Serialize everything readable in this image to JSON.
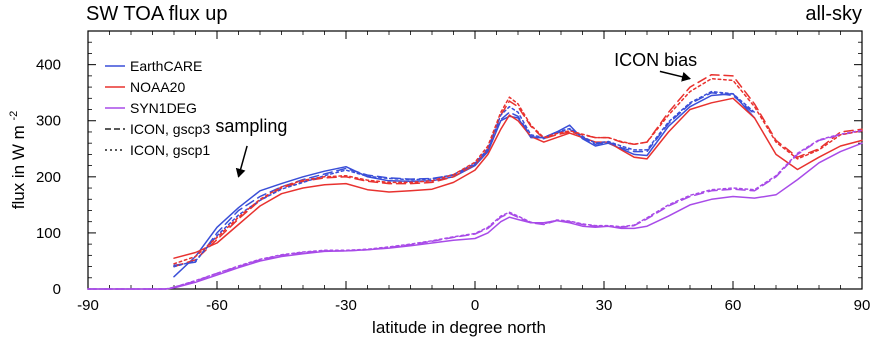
{
  "chart_data": {
    "type": "line",
    "title": "SW TOA flux up",
    "subtitle": "all-sky",
    "xlabel": "latitude in degree north",
    "ylabel_main": "flux in W m",
    "ylabel_sup": "-2",
    "xlim": [
      -90,
      90
    ],
    "ylim": [
      0,
      460
    ],
    "xticks": [
      -90,
      -60,
      -30,
      0,
      30,
      60,
      90
    ],
    "yticks": [
      0,
      100,
      200,
      300,
      400
    ],
    "xticks_minor": [
      -85,
      -80,
      -75,
      -70,
      -65,
      -55,
      -50,
      -45,
      -40,
      -35,
      -25,
      -20,
      -15,
      -10,
      -5,
      5,
      10,
      15,
      20,
      25,
      35,
      40,
      45,
      50,
      55,
      65,
      70,
      75,
      80,
      85
    ],
    "yticks_minor": [
      20,
      40,
      60,
      80,
      120,
      140,
      160,
      180,
      220,
      240,
      260,
      280,
      320,
      340,
      360,
      380,
      420,
      440
    ],
    "grid": false,
    "legend_position": "top-left",
    "legend": [
      {
        "label": "EarthCARE",
        "color": "#3a4fd8",
        "dash": "solid"
      },
      {
        "label": "NOAA20",
        "color": "#e8322f",
        "dash": "solid"
      },
      {
        "label": "SYN1DEG",
        "color": "#a84be8",
        "dash": "solid"
      },
      {
        "label": "ICON, gscp3",
        "color": "#222222",
        "dash": "dashed"
      },
      {
        "label": "ICON, gscp1",
        "color": "#222222",
        "dash": "dotted"
      }
    ],
    "annotations": [
      {
        "text": "sampling",
        "x": -52,
        "y": 280,
        "arrow_from": [
          -53,
          255
        ],
        "arrow_to": [
          -55,
          200
        ]
      },
      {
        "text": "ICON bias",
        "x": 42,
        "y": 398,
        "arrow_from": [
          43,
          388
        ],
        "arrow_to": [
          50,
          375
        ]
      }
    ],
    "series": [
      {
        "name": "EarthCARE",
        "color": "#3a4fd8",
        "dash": "solid",
        "x": [
          -70,
          -65,
          -60,
          -55,
          -50,
          -45,
          -40,
          -35,
          -30,
          -25,
          -20,
          -15,
          -10,
          -5,
          0,
          3,
          6,
          8,
          10,
          13,
          16,
          19,
          22,
          25,
          28,
          31,
          34,
          37,
          40,
          45,
          50,
          55,
          60,
          65
        ],
        "y": [
          22,
          58,
          110,
          145,
          175,
          188,
          200,
          210,
          218,
          200,
          193,
          192,
          193,
          200,
          220,
          245,
          300,
          308,
          305,
          270,
          270,
          280,
          292,
          268,
          255,
          260,
          250,
          240,
          238,
          290,
          325,
          345,
          348,
          305
        ]
      },
      {
        "name": "NOAA20",
        "color": "#e8322f",
        "dash": "solid",
        "x": [
          -70,
          -65,
          -60,
          -55,
          -50,
          -45,
          -40,
          -35,
          -30,
          -25,
          -20,
          -15,
          -10,
          -5,
          0,
          3,
          6,
          8,
          10,
          13,
          16,
          19,
          22,
          25,
          28,
          31,
          34,
          37,
          40,
          45,
          50,
          55,
          60,
          65,
          70,
          75,
          80,
          85,
          90
        ],
        "y": [
          55,
          65,
          82,
          115,
          148,
          170,
          180,
          186,
          188,
          177,
          173,
          175,
          178,
          190,
          212,
          240,
          285,
          310,
          300,
          272,
          262,
          270,
          278,
          270,
          262,
          262,
          248,
          235,
          232,
          280,
          320,
          332,
          340,
          305,
          240,
          213,
          235,
          255,
          265
        ]
      },
      {
        "name": "SYN1DEG",
        "color": "#a84be8",
        "dash": "solid",
        "x": [
          -90,
          -80,
          -72,
          -70,
          -65,
          -60,
          -55,
          -50,
          -45,
          -40,
          -35,
          -30,
          -25,
          -20,
          -15,
          -10,
          -5,
          0,
          3,
          6,
          8,
          10,
          13,
          16,
          19,
          22,
          25,
          28,
          31,
          34,
          37,
          40,
          45,
          50,
          55,
          60,
          65,
          70,
          75,
          80,
          85,
          90
        ],
        "y": [
          0,
          0,
          0,
          2,
          12,
          25,
          38,
          50,
          58,
          63,
          67,
          68,
          70,
          73,
          77,
          82,
          87,
          90,
          100,
          120,
          128,
          124,
          118,
          118,
          122,
          118,
          112,
          110,
          112,
          108,
          108,
          112,
          130,
          150,
          160,
          165,
          162,
          168,
          195,
          225,
          245,
          260
        ]
      },
      {
        "name": "ICON, gscp3",
        "color": "#3a4fd8",
        "dash": "dashed",
        "x": [
          -70,
          -65,
          -60,
          -55,
          -50,
          -45,
          -40,
          -35,
          -30,
          -25,
          -20,
          -15,
          -10,
          -5,
          0,
          3,
          6,
          8,
          10,
          13,
          16,
          19,
          22,
          25,
          28,
          31,
          34,
          37,
          40,
          45,
          50,
          55,
          60,
          65
        ],
        "y": [
          42,
          48,
          100,
          140,
          165,
          182,
          195,
          205,
          215,
          203,
          198,
          196,
          197,
          203,
          222,
          248,
          302,
          315,
          308,
          272,
          268,
          278,
          285,
          270,
          258,
          262,
          252,
          245,
          245,
          295,
          330,
          350,
          345,
          312
        ]
      },
      {
        "name": "ICON, gscp3",
        "color": "#e8322f",
        "dash": "dashed",
        "x": [
          -70,
          -65,
          -60,
          -55,
          -50,
          -45,
          -40,
          -35,
          -30,
          -25,
          -20,
          -15,
          -10,
          -5,
          0,
          3,
          6,
          8,
          10,
          13,
          16,
          19,
          22,
          25,
          28,
          31,
          34,
          37,
          40,
          45,
          50,
          55,
          60,
          65,
          70,
          75,
          80,
          85,
          90
        ],
        "y": [
          40,
          52,
          88,
          125,
          158,
          180,
          192,
          198,
          200,
          192,
          188,
          188,
          190,
          200,
          222,
          250,
          310,
          335,
          325,
          290,
          268,
          275,
          280,
          275,
          270,
          270,
          262,
          258,
          262,
          315,
          360,
          382,
          380,
          330,
          265,
          235,
          250,
          280,
          285
        ]
      },
      {
        "name": "ICON, gscp3",
        "color": "#a84be8",
        "dash": "dashed",
        "x": [
          -90,
          -80,
          -72,
          -70,
          -65,
          -60,
          -55,
          -50,
          -45,
          -40,
          -35,
          -30,
          -25,
          -20,
          -15,
          -10,
          -5,
          0,
          3,
          6,
          8,
          10,
          13,
          16,
          19,
          22,
          25,
          28,
          31,
          34,
          37,
          40,
          45,
          50,
          55,
          60,
          65,
          70,
          75,
          80,
          85,
          90
        ],
        "y": [
          0,
          0,
          0,
          3,
          14,
          28,
          40,
          52,
          60,
          65,
          68,
          68,
          70,
          74,
          79,
          85,
          92,
          98,
          108,
          128,
          135,
          128,
          118,
          115,
          122,
          120,
          115,
          112,
          112,
          110,
          113,
          125,
          148,
          165,
          175,
          178,
          175,
          200,
          240,
          265,
          275,
          282
        ]
      },
      {
        "name": "ICON, gscp1",
        "color": "#3a4fd8",
        "dash": "dotted",
        "x": [
          -70,
          -65,
          -60,
          -55,
          -50,
          -45,
          -40,
          -35,
          -30,
          -25,
          -20,
          -15,
          -10,
          -5,
          0,
          3,
          6,
          8,
          10,
          13,
          16,
          19,
          22,
          25,
          28,
          31,
          34,
          37,
          40,
          45,
          50,
          55,
          60,
          65
        ],
        "y": [
          40,
          50,
          95,
          132,
          158,
          178,
          190,
          202,
          212,
          201,
          197,
          195,
          196,
          204,
          224,
          250,
          310,
          325,
          315,
          275,
          270,
          280,
          286,
          272,
          260,
          263,
          255,
          248,
          248,
          298,
          332,
          352,
          348,
          315
        ]
      },
      {
        "name": "ICON, gscp1",
        "color": "#e8322f",
        "dash": "dotted",
        "x": [
          -70,
          -65,
          -60,
          -55,
          -50,
          -45,
          -40,
          -35,
          -30,
          -25,
          -20,
          -15,
          -10,
          -5,
          0,
          3,
          6,
          8,
          10,
          13,
          16,
          19,
          22,
          25,
          28,
          31,
          34,
          37,
          40,
          45,
          50,
          55,
          60,
          65,
          70,
          75,
          80,
          85,
          90
        ],
        "y": [
          45,
          58,
          92,
          128,
          160,
          182,
          194,
          200,
          202,
          194,
          190,
          190,
          193,
          204,
          226,
          255,
          315,
          342,
          330,
          292,
          270,
          277,
          282,
          276,
          270,
          270,
          263,
          258,
          262,
          310,
          352,
          375,
          372,
          325,
          262,
          232,
          248,
          275,
          282
        ]
      },
      {
        "name": "ICON, gscp1",
        "color": "#a84be8",
        "dash": "dotted",
        "x": [
          -90,
          -80,
          -72,
          -70,
          -65,
          -60,
          -55,
          -50,
          -45,
          -40,
          -35,
          -30,
          -25,
          -20,
          -15,
          -10,
          -5,
          0,
          3,
          6,
          8,
          10,
          13,
          16,
          19,
          22,
          25,
          28,
          31,
          34,
          37,
          40,
          45,
          50,
          55,
          60,
          65,
          70,
          75,
          80,
          85,
          90
        ],
        "y": [
          0,
          0,
          0,
          3,
          15,
          28,
          41,
          53,
          61,
          66,
          69,
          69,
          71,
          75,
          80,
          86,
          93,
          99,
          110,
          130,
          137,
          130,
          119,
          116,
          123,
          121,
          116,
          113,
          113,
          111,
          114,
          127,
          150,
          167,
          177,
          180,
          177,
          202,
          242,
          266,
          276,
          283
        ]
      }
    ]
  }
}
